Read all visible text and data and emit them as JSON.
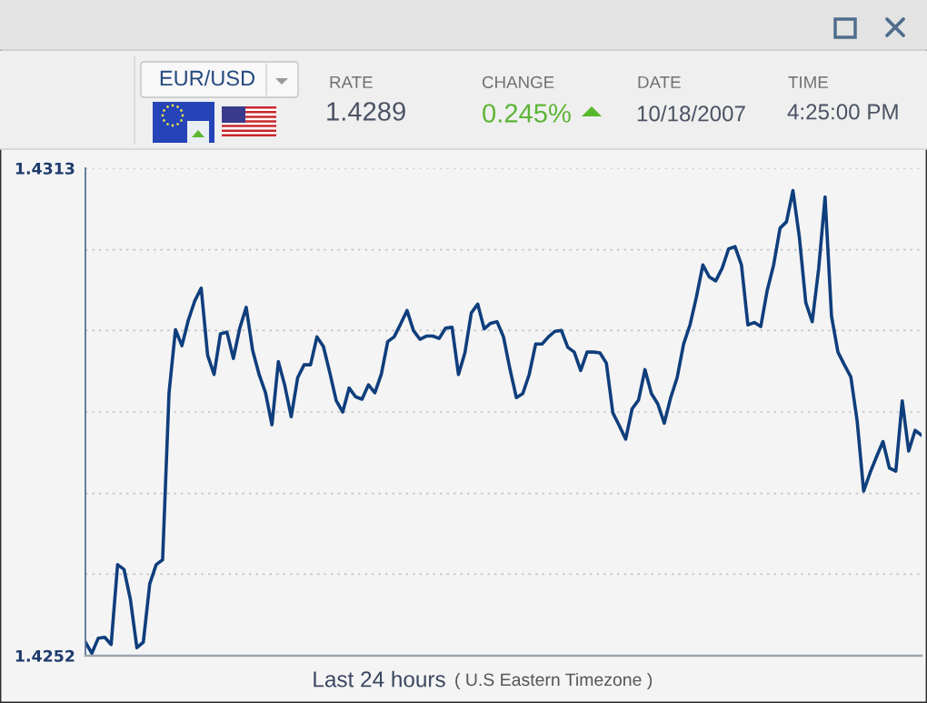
{
  "chart_data": {
    "type": "line",
    "xlabel": "Last 24 hours",
    "annotations": [
      "EUR/USD",
      "RATE",
      "1.4289",
      "CHANGE",
      "0.245%",
      "DATE",
      "10/18/2007",
      "TIME",
      "4:25:00 PM",
      "( U.S Eastern Timezone )"
    ],
    "categories": [
      null,
      null,
      null,
      null,
      null,
      null,
      null,
      null,
      null,
      null,
      null,
      null,
      null,
      null,
      null,
      null,
      null,
      null,
      null,
      null,
      null,
      null,
      null,
      null,
      null,
      null,
      null,
      null,
      null,
      null,
      null,
      null,
      null,
      null,
      null,
      null,
      null,
      null,
      null,
      null,
      null,
      null,
      null,
      null,
      null,
      null,
      null,
      null,
      null,
      null,
      null,
      null,
      null,
      null,
      null,
      null,
      null,
      null,
      null,
      null,
      null,
      null,
      null,
      null,
      null,
      null,
      null,
      null,
      null,
      null,
      null,
      null,
      null,
      null,
      null,
      null,
      null,
      null,
      null,
      null,
      null,
      null,
      null,
      null,
      null,
      null,
      null,
      null,
      null,
      null,
      null,
      null,
      null,
      null,
      null,
      null,
      null,
      null,
      null,
      null,
      null,
      null,
      null,
      null,
      null,
      null,
      null,
      null,
      null,
      null,
      null,
      null,
      null,
      null,
      null,
      null,
      null,
      null,
      null,
      null,
      null,
      null,
      null,
      null,
      null,
      null,
      null,
      null,
      null,
      null,
      null
    ],
    "series": [
      {
        "color": "#0f3e7c",
        "values": [
          1.42537,
          1.42523,
          1.42542,
          1.42543,
          1.42534,
          1.42634,
          1.42628,
          1.4259,
          1.4253,
          1.42537,
          1.4261,
          1.42634,
          1.4264,
          1.42849,
          1.42928,
          1.42908,
          1.4294,
          1.42964,
          1.4298,
          1.42896,
          1.42872,
          1.42923,
          1.42925,
          1.42892,
          1.4293,
          1.42956,
          1.42902,
          1.42872,
          1.42849,
          1.42809,
          1.42888,
          1.42858,
          1.42819,
          1.42868,
          1.42884,
          1.42884,
          1.42919,
          1.42907,
          1.42874,
          1.42839,
          1.42825,
          1.42855,
          1.42844,
          1.42841,
          1.42859,
          1.42849,
          1.42872,
          1.42913,
          1.42919,
          1.42935,
          1.42952,
          1.42927,
          1.42916,
          1.4292,
          1.4292,
          1.42917,
          1.4293,
          1.42931,
          1.42872,
          1.42899,
          1.42949,
          1.4296,
          1.42929,
          1.42936,
          1.42938,
          1.42919,
          1.42879,
          1.42843,
          1.42848,
          1.42872,
          1.4291,
          1.4291,
          1.42919,
          1.42926,
          1.42927,
          1.42906,
          1.429,
          1.42877,
          1.429,
          1.429,
          1.42899,
          1.42886,
          1.42824,
          1.42808,
          1.42791,
          1.42829,
          1.4284,
          1.42878,
          1.42848,
          1.42835,
          1.42811,
          1.42843,
          1.42868,
          1.4291,
          1.42934,
          1.42969,
          1.43009,
          1.42994,
          1.42989,
          1.43005,
          1.43029,
          1.43032,
          1.43009,
          1.42934,
          1.42937,
          1.42932,
          1.42977,
          1.43009,
          1.43055,
          1.43063,
          1.43102,
          1.43044,
          1.42962,
          1.42938,
          1.43004,
          1.43094,
          1.42945,
          1.429,
          1.42884,
          1.42869,
          1.42813,
          1.42726,
          1.42749,
          1.42769,
          1.42788,
          1.42755,
          1.42751,
          1.42839,
          1.42776,
          1.42802,
          1.42796
        ]
      }
    ],
    "ylim": [
      1.4252,
      1.4313
    ],
    "yticks": [
      1.4252,
      {
        "value": 1.42622,
        "label": null
      },
      {
        "value": 1.42723,
        "label": null
      },
      {
        "value": 1.42825,
        "label": null
      },
      {
        "value": 1.42927,
        "label": null
      },
      {
        "value": 1.43028,
        "label": null
      },
      1.4313
    ],
    "grid": "y",
    "line_style": "solid",
    "tick_labels": "y"
  }
}
